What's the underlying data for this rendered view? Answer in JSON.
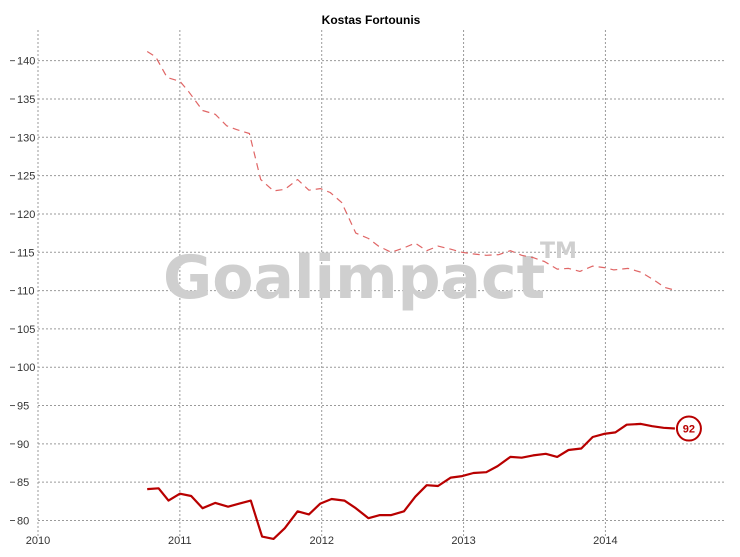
{
  "chart_data": {
    "type": "line",
    "title": "Kostas Fortounis",
    "xlabel": "",
    "ylabel": "",
    "xlim": [
      2010.0,
      2014.85
    ],
    "ylim": [
      78.5,
      144
    ],
    "yticks": [
      80,
      85,
      90,
      95,
      100,
      105,
      110,
      115,
      120,
      125,
      130,
      135,
      140
    ],
    "xticks": [
      2010,
      2011,
      2012,
      2013,
      2014
    ],
    "grid": true,
    "watermark": "Goalimpact",
    "watermark_mark": "TM",
    "colors": {
      "dashed": "#e06666",
      "solid": "#b80000",
      "badge": "#b80000"
    },
    "badge": {
      "label": "92",
      "series": "solid"
    },
    "series": [
      {
        "style": "dashed",
        "x": [
          2010.77,
          2010.83,
          2010.91,
          2011.0,
          2011.06,
          2011.16,
          2011.25,
          2011.33,
          2011.4,
          2011.49,
          2011.57,
          2011.66,
          2011.74,
          2011.83,
          2011.91,
          2011.99,
          2012.06,
          2012.14,
          2012.24,
          2012.33,
          2012.4,
          2012.49,
          2012.57,
          2012.66,
          2012.74,
          2012.82,
          2012.91,
          2012.99,
          2013.06,
          2013.16,
          2013.25,
          2013.33,
          2013.41,
          2013.49,
          2013.57,
          2013.66,
          2013.74,
          2013.82,
          2013.91,
          2013.99,
          2014.06,
          2014.16,
          2014.25,
          2014.34,
          2014.42,
          2014.5
        ],
        "y": [
          141.2,
          140.5,
          137.8,
          137.3,
          136.0,
          133.5,
          133.0,
          131.5,
          131.0,
          130.5,
          124.5,
          123.0,
          123.2,
          124.5,
          123.1,
          123.3,
          122.8,
          121.5,
          117.5,
          116.8,
          115.8,
          115.0,
          115.5,
          116.2,
          115.2,
          115.8,
          115.4,
          115.0,
          114.8,
          114.6,
          114.7,
          115.2,
          114.6,
          114.3,
          113.8,
          112.8,
          112.9,
          112.5,
          113.2,
          113.0,
          112.7,
          112.9,
          112.4,
          111.4,
          110.4,
          110.0
        ]
      },
      {
        "style": "solid",
        "x": [
          2010.77,
          2010.85,
          2010.92,
          2011.0,
          2011.08,
          2011.16,
          2011.25,
          2011.34,
          2011.42,
          2011.5,
          2011.58,
          2011.66,
          2011.74,
          2011.83,
          2011.91,
          2011.99,
          2012.07,
          2012.16,
          2012.24,
          2012.33,
          2012.41,
          2012.49,
          2012.58,
          2012.66,
          2012.74,
          2012.82,
          2012.91,
          2012.99,
          2013.07,
          2013.16,
          2013.24,
          2013.33,
          2013.41,
          2013.49,
          2013.58,
          2013.66,
          2013.74,
          2013.83,
          2013.91,
          2013.99,
          2014.07,
          2014.15,
          2014.25,
          2014.33,
          2014.41,
          2014.49
        ],
        "y": [
          84.1,
          84.2,
          82.6,
          83.5,
          83.2,
          81.6,
          82.3,
          81.8,
          82.2,
          82.6,
          77.9,
          77.6,
          79.0,
          81.2,
          80.8,
          82.2,
          82.8,
          82.6,
          81.6,
          80.3,
          80.7,
          80.7,
          81.2,
          83.1,
          84.6,
          84.5,
          85.6,
          85.8,
          86.2,
          86.3,
          87.1,
          88.3,
          88.2,
          88.5,
          88.7,
          88.3,
          89.2,
          89.4,
          90.9,
          91.3,
          91.5,
          92.5,
          92.6,
          92.3,
          92.1,
          92.0
        ]
      }
    ]
  }
}
